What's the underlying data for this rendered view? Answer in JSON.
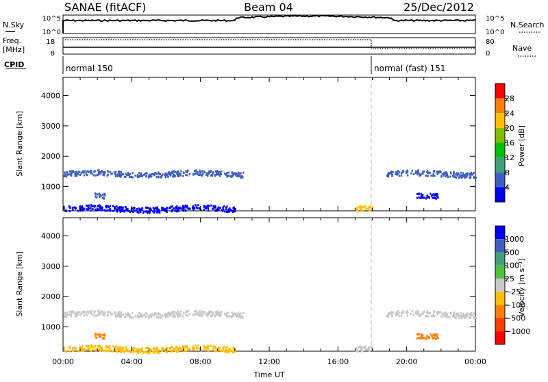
{
  "header": {
    "site": "SANAE (fitACF)",
    "beam": "Beam 04",
    "date": "25/Dec/2012"
  },
  "noise_panel": {
    "left_label": "N.Sky",
    "right_label": "N.Search",
    "left_ticks": [
      "10^5",
      "10^0"
    ],
    "right_ticks": [
      "10^5",
      "10^0"
    ]
  },
  "freq_panel": {
    "left_label_line1": "Freq.",
    "left_label_line2": "[MHz]",
    "right_label": "Nave",
    "left_ticks": [
      "18",
      "8"
    ],
    "right_ticks": [
      "80",
      "0"
    ]
  },
  "cpid_panel": {
    "label": "CPID",
    "programs": [
      {
        "name": "normal 150",
        "start_hour": 0
      },
      {
        "name": "normal (fast) 151",
        "start_hour": 18
      }
    ]
  },
  "chart_data": [
    {
      "type": "heatmap",
      "panel": "power",
      "ylabel": "Slant Range [km]",
      "yticks": [
        1000,
        2000,
        3000,
        4000
      ],
      "ylim": [
        200,
        4600
      ],
      "colorbar_label": "Power [dB]",
      "colorbar_ticks": [
        "28",
        "24",
        "20",
        "16",
        "12",
        "8",
        "4"
      ],
      "colorbar_colors": [
        "#ff0000",
        "#ff7f00",
        "#ffbf00",
        "#7fbf00",
        "#00bf00",
        "#3f9f7f",
        "#3f5fbf",
        "#0000ff"
      ],
      "scatter_bands": [
        {
          "start_hour": 0.0,
          "end_hour": 10.5,
          "range_km": 1400,
          "level": "8"
        },
        {
          "start_hour": 1.8,
          "end_hour": 2.4,
          "range_km": 650,
          "level": "8"
        },
        {
          "start_hour": 0.0,
          "end_hour": 10.0,
          "range_km": 250,
          "level": "4"
        },
        {
          "start_hour": 17.0,
          "end_hour": 18.0,
          "range_km": 300,
          "level": "20"
        },
        {
          "start_hour": 18.8,
          "end_hour": 24.0,
          "range_km": 1400,
          "level": "8"
        },
        {
          "start_hour": 20.5,
          "end_hour": 21.8,
          "range_km": 650,
          "level": "4"
        }
      ]
    },
    {
      "type": "heatmap",
      "panel": "velocity",
      "ylabel": "Slant Range [km]",
      "yticks": [
        1000,
        2000,
        3000,
        4000
      ],
      "ylim": [
        200,
        4600
      ],
      "colorbar_label": "Velocity [m s⁻¹]",
      "colorbar_ticks": [
        "1000",
        "500",
        "100",
        "25",
        "−25",
        "−100",
        "−500",
        "−1000"
      ],
      "colorbar_colors": [
        "#0000ff",
        "#3f5fbf",
        "#3f9f7f",
        "#4fbf3f",
        "#c8c8c8",
        "#ffbf00",
        "#ff7f00",
        "#ff3f00",
        "#ff0000"
      ],
      "scatter_bands": [
        {
          "start_hour": 0.0,
          "end_hour": 10.5,
          "range_km": 1400,
          "level": "gray"
        },
        {
          "start_hour": 1.8,
          "end_hour": 2.4,
          "range_km": 650,
          "level": "orange"
        },
        {
          "start_hour": 0.0,
          "end_hour": 10.0,
          "range_km": 250,
          "level": "yellow"
        },
        {
          "start_hour": 17.0,
          "end_hour": 18.0,
          "range_km": 300,
          "level": "gray"
        },
        {
          "start_hour": 18.8,
          "end_hour": 24.0,
          "range_km": 1400,
          "level": "gray"
        },
        {
          "start_hour": 20.5,
          "end_hour": 21.8,
          "range_km": 650,
          "level": "orange"
        }
      ]
    }
  ],
  "time_axis": {
    "label": "Time UT",
    "ticks": [
      "00:00",
      "04:00",
      "08:00",
      "12:00",
      "16:00",
      "20:00",
      "00:00"
    ],
    "range_hours": [
      0,
      24
    ]
  }
}
